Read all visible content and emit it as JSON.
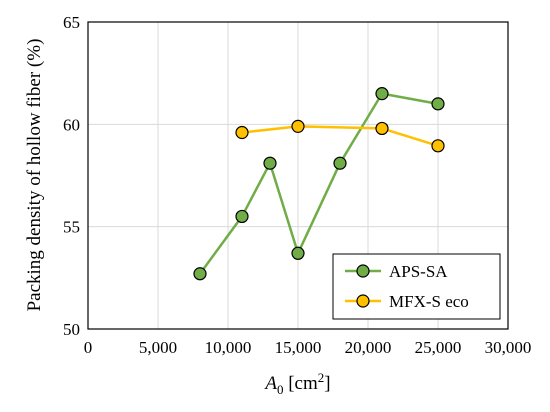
{
  "chart_data": {
    "type": "line",
    "xlabel_main": "A",
    "xlabel_sub": "0",
    "xlabel_unit_pre": " [cm",
    "xlabel_unit_sup": "2",
    "xlabel_unit_post": "]",
    "ylabel": "Packing density of hollow fiber (%)",
    "xlim": [
      0,
      30000
    ],
    "ylim": [
      50,
      65
    ],
    "x_ticks": [
      0,
      5000,
      10000,
      15000,
      20000,
      25000,
      30000
    ],
    "x_tick_labels": [
      "0",
      "5,000",
      "10,000",
      "15,000",
      "20,000",
      "25,000",
      "30,000"
    ],
    "y_ticks": [
      50,
      55,
      60,
      65
    ],
    "y_tick_labels": [
      "50",
      "55",
      "60",
      "65"
    ],
    "grid": true,
    "legend_position": "bottom-right",
    "series": [
      {
        "name": "APS-SA",
        "color": "#70ad47",
        "x": [
          8000,
          11000,
          13000,
          15000,
          18000,
          21000,
          25000
        ],
        "y": [
          52.7,
          55.5,
          58.1,
          53.7,
          58.1,
          61.5,
          61.0
        ]
      },
      {
        "name": "MFX-S eco",
        "color": "#ffc000",
        "x": [
          11000,
          15000,
          21000,
          25000
        ],
        "y": [
          59.6,
          59.9,
          59.8,
          58.95
        ]
      }
    ]
  }
}
